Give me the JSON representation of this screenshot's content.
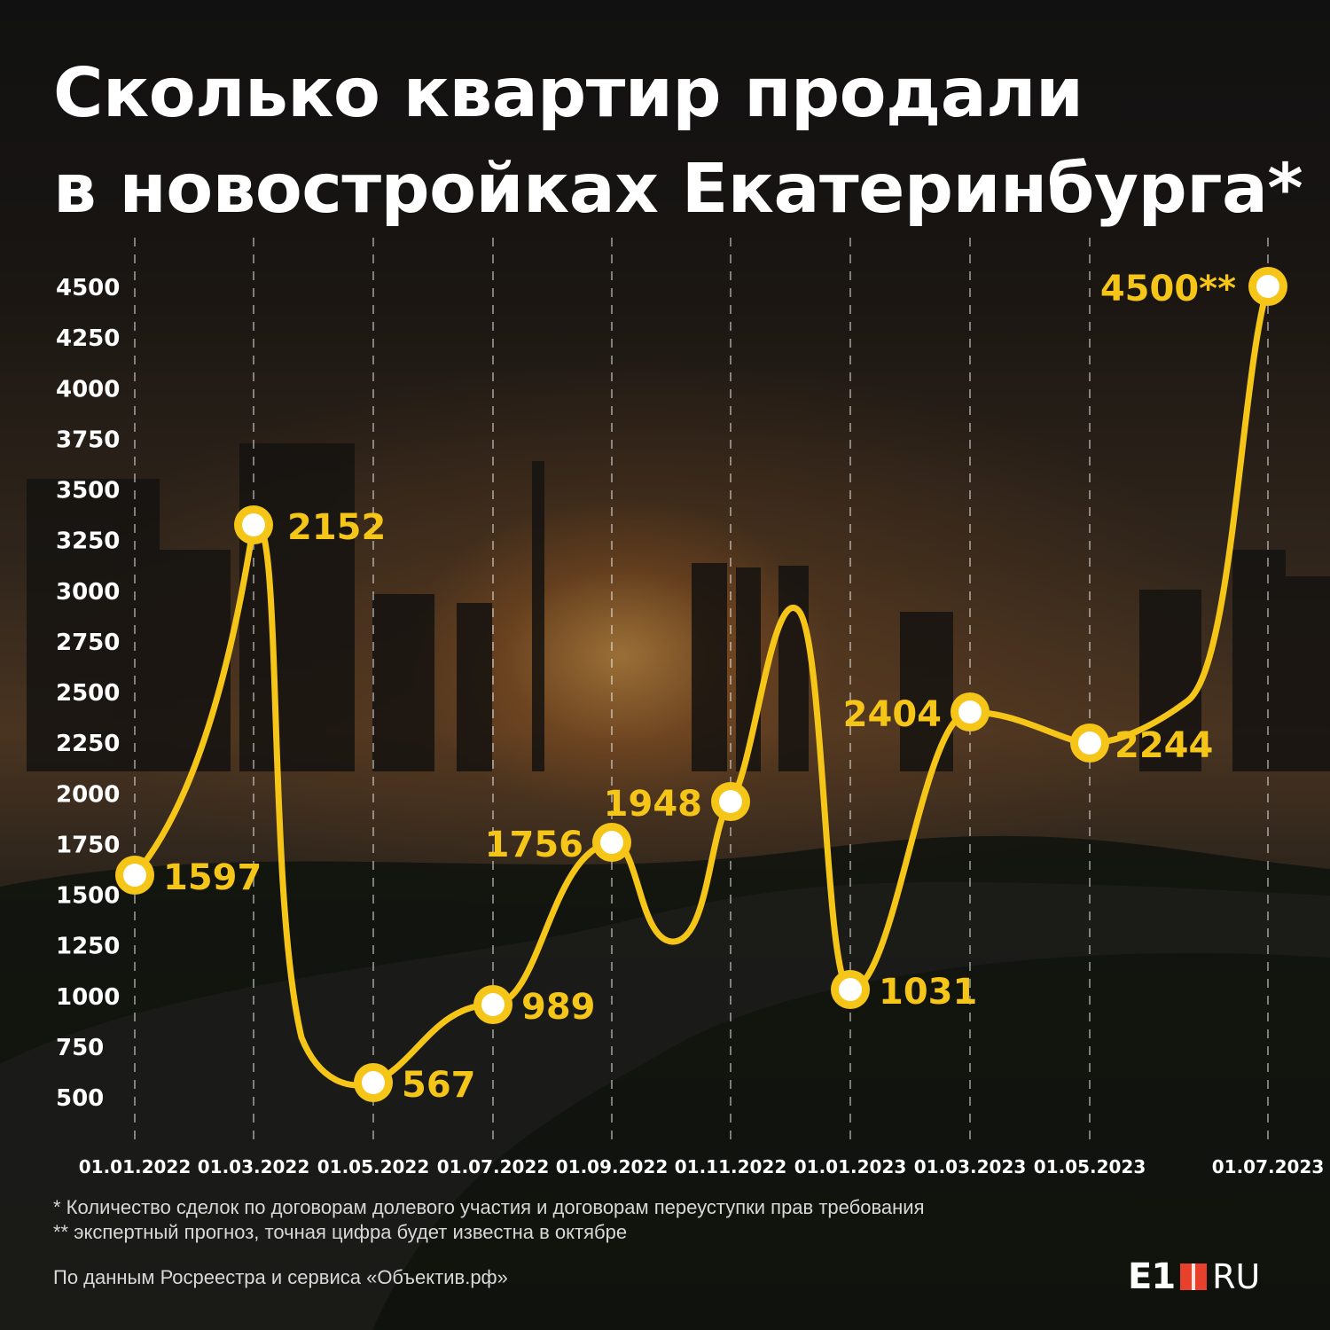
{
  "title_lines": [
    "Сколько квартир продали",
    "в новостройках Екатеринбурга*"
  ],
  "notes": [
    "* Количество сделок по договорам долевого участия и договорам переуступки прав требования",
    "** экспертный прогноз, точная цифра будет известна в октябре"
  ],
  "source": "По данным Росреестра и сервиса «Объектив.рф»",
  "logo": {
    "text": "E1",
    "suffix": "RU"
  },
  "colors": {
    "line": "#f5c518",
    "accent": "#e8412b",
    "text": "#ffffff"
  },
  "chart_data": {
    "type": "line",
    "title": "Сколько квартир продали в новостройках Екатеринбурга*",
    "y_ticks": [
      "4500",
      "4250",
      "4000",
      "3750",
      "3500",
      "3250",
      "3000",
      "2750",
      "2500",
      "2250",
      "2000",
      "1750",
      "1500",
      "1250",
      "1000",
      "750",
      "500"
    ],
    "categories": [
      "01.01.2022",
      "01.03.2022",
      "01.05.2022",
      "01.07.2022",
      "01.09.2022",
      "01.11.2022",
      "01.01.2023",
      "01.03.2023",
      "01.05.2023",
      "01.07.2023"
    ],
    "values": [
      1597,
      2152,
      567,
      989,
      1756,
      1948,
      1031,
      2404,
      2244,
      4500
    ],
    "labels": [
      "1597",
      "2152",
      "567",
      "989",
      "1756",
      "1948",
      "1031",
      "2404",
      "2244",
      "4500**"
    ],
    "grid": "vertical dashed",
    "legend": "none"
  }
}
